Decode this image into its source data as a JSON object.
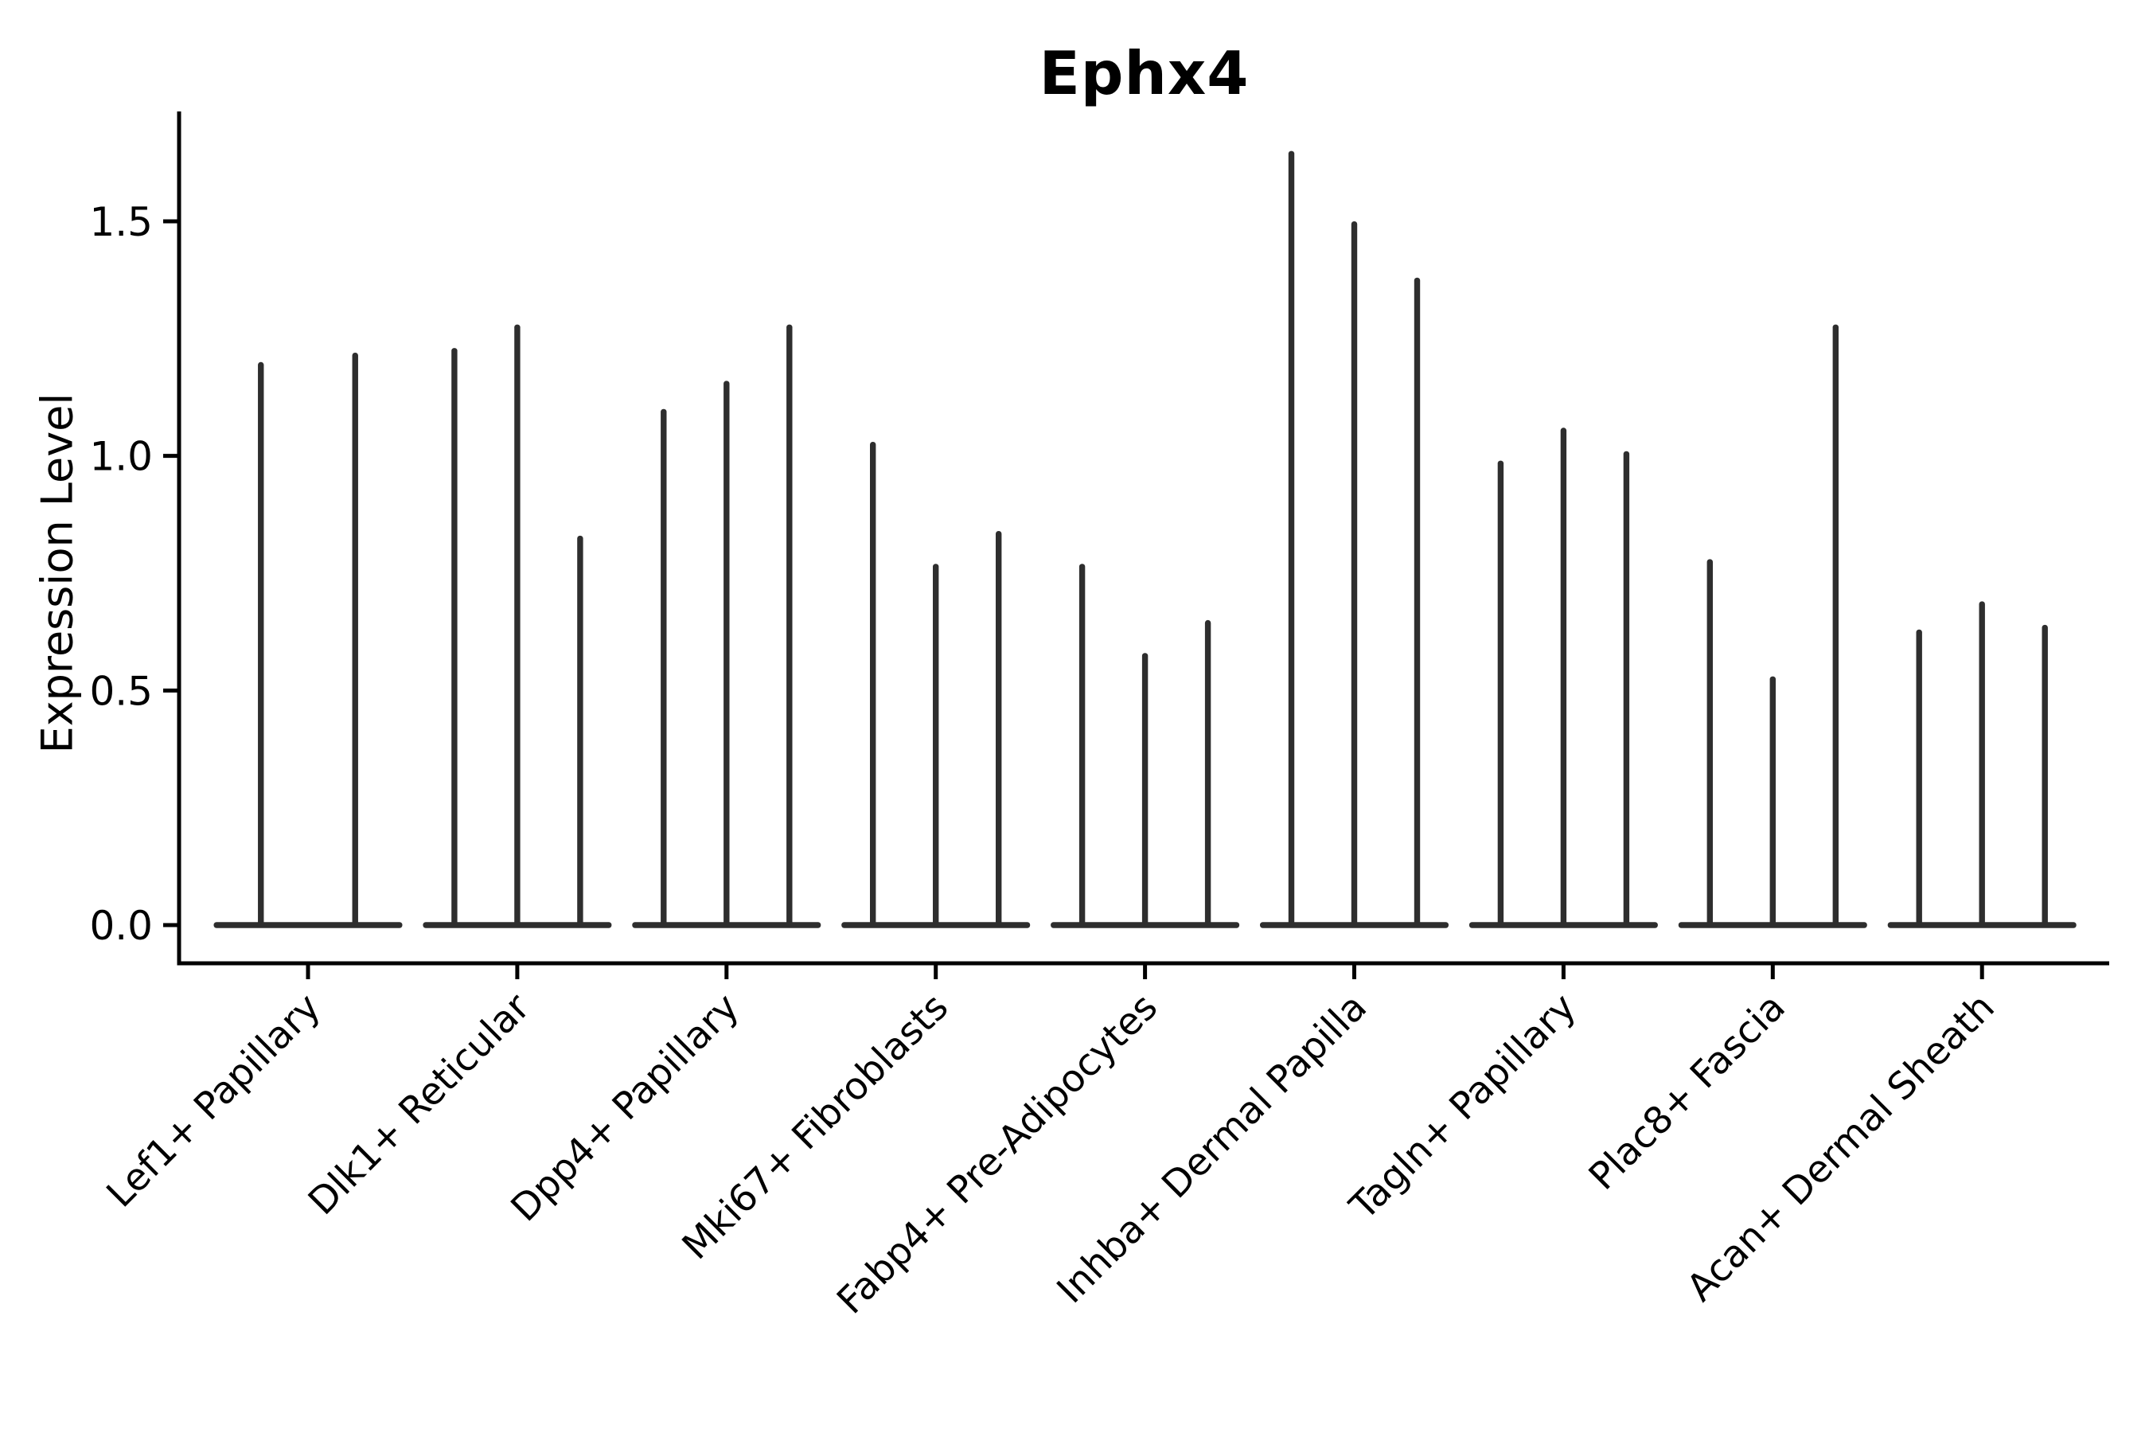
{
  "title": "Ephx4",
  "chart_data": {
    "type": "violin",
    "title": "Ephx4",
    "xlabel": "",
    "ylabel": "Expression Level",
    "ylim": [
      0,
      1.73
    ],
    "yticks": [
      0.0,
      0.5,
      1.0,
      1.5
    ],
    "ytick_labels": [
      "0.0",
      "0.5",
      "1.0",
      "1.5"
    ],
    "grid": false,
    "legend_position": "none",
    "style": "needle-like violins (sparse single-cell expression): each violin is a flat base at 0 with a thin spike up to its maximum expression value",
    "categories": [
      "Lef1+ Papillary",
      "Dlk1+ Reticular",
      "Dpp4+ Papillary",
      "Mki67+ Fibroblasts",
      "Fabp4+ Pre-Adipocytes",
      "Inhba+ Dermal Papilla",
      "Tagln+ Papillary",
      "Plac8+ Fascia",
      "Acan+ Dermal Sheath"
    ],
    "series": [
      {
        "category": "Lef1+ Papillary",
        "violin_max_values": [
          1.2,
          1.22
        ]
      },
      {
        "category": "Dlk1+ Reticular",
        "violin_max_values": [
          1.23,
          1.28,
          0.83
        ]
      },
      {
        "category": "Dpp4+ Papillary",
        "violin_max_values": [
          1.1,
          1.16,
          1.28
        ]
      },
      {
        "category": "Mki67+ Fibroblasts",
        "violin_max_values": [
          1.03,
          0.77,
          0.84
        ]
      },
      {
        "category": "Fabp4+ Pre-Adipocytes",
        "violin_max_values": [
          0.77,
          0.58,
          0.65
        ]
      },
      {
        "category": "Inhba+ Dermal Papilla",
        "violin_max_values": [
          1.65,
          1.5,
          1.38
        ]
      },
      {
        "category": "Tagln+ Papillary",
        "violin_max_values": [
          0.99,
          1.06,
          1.01
        ]
      },
      {
        "category": "Plac8+ Fascia",
        "violin_max_values": [
          0.78,
          0.53,
          1.28
        ]
      },
      {
        "category": "Acan+ Dermal Sheath",
        "violin_max_values": [
          0.63,
          0.69,
          0.64
        ]
      }
    ],
    "colors": {
      "violin": "#2e2e2e",
      "axis": "#000000",
      "text": "#000000",
      "background": "#ffffff"
    }
  }
}
